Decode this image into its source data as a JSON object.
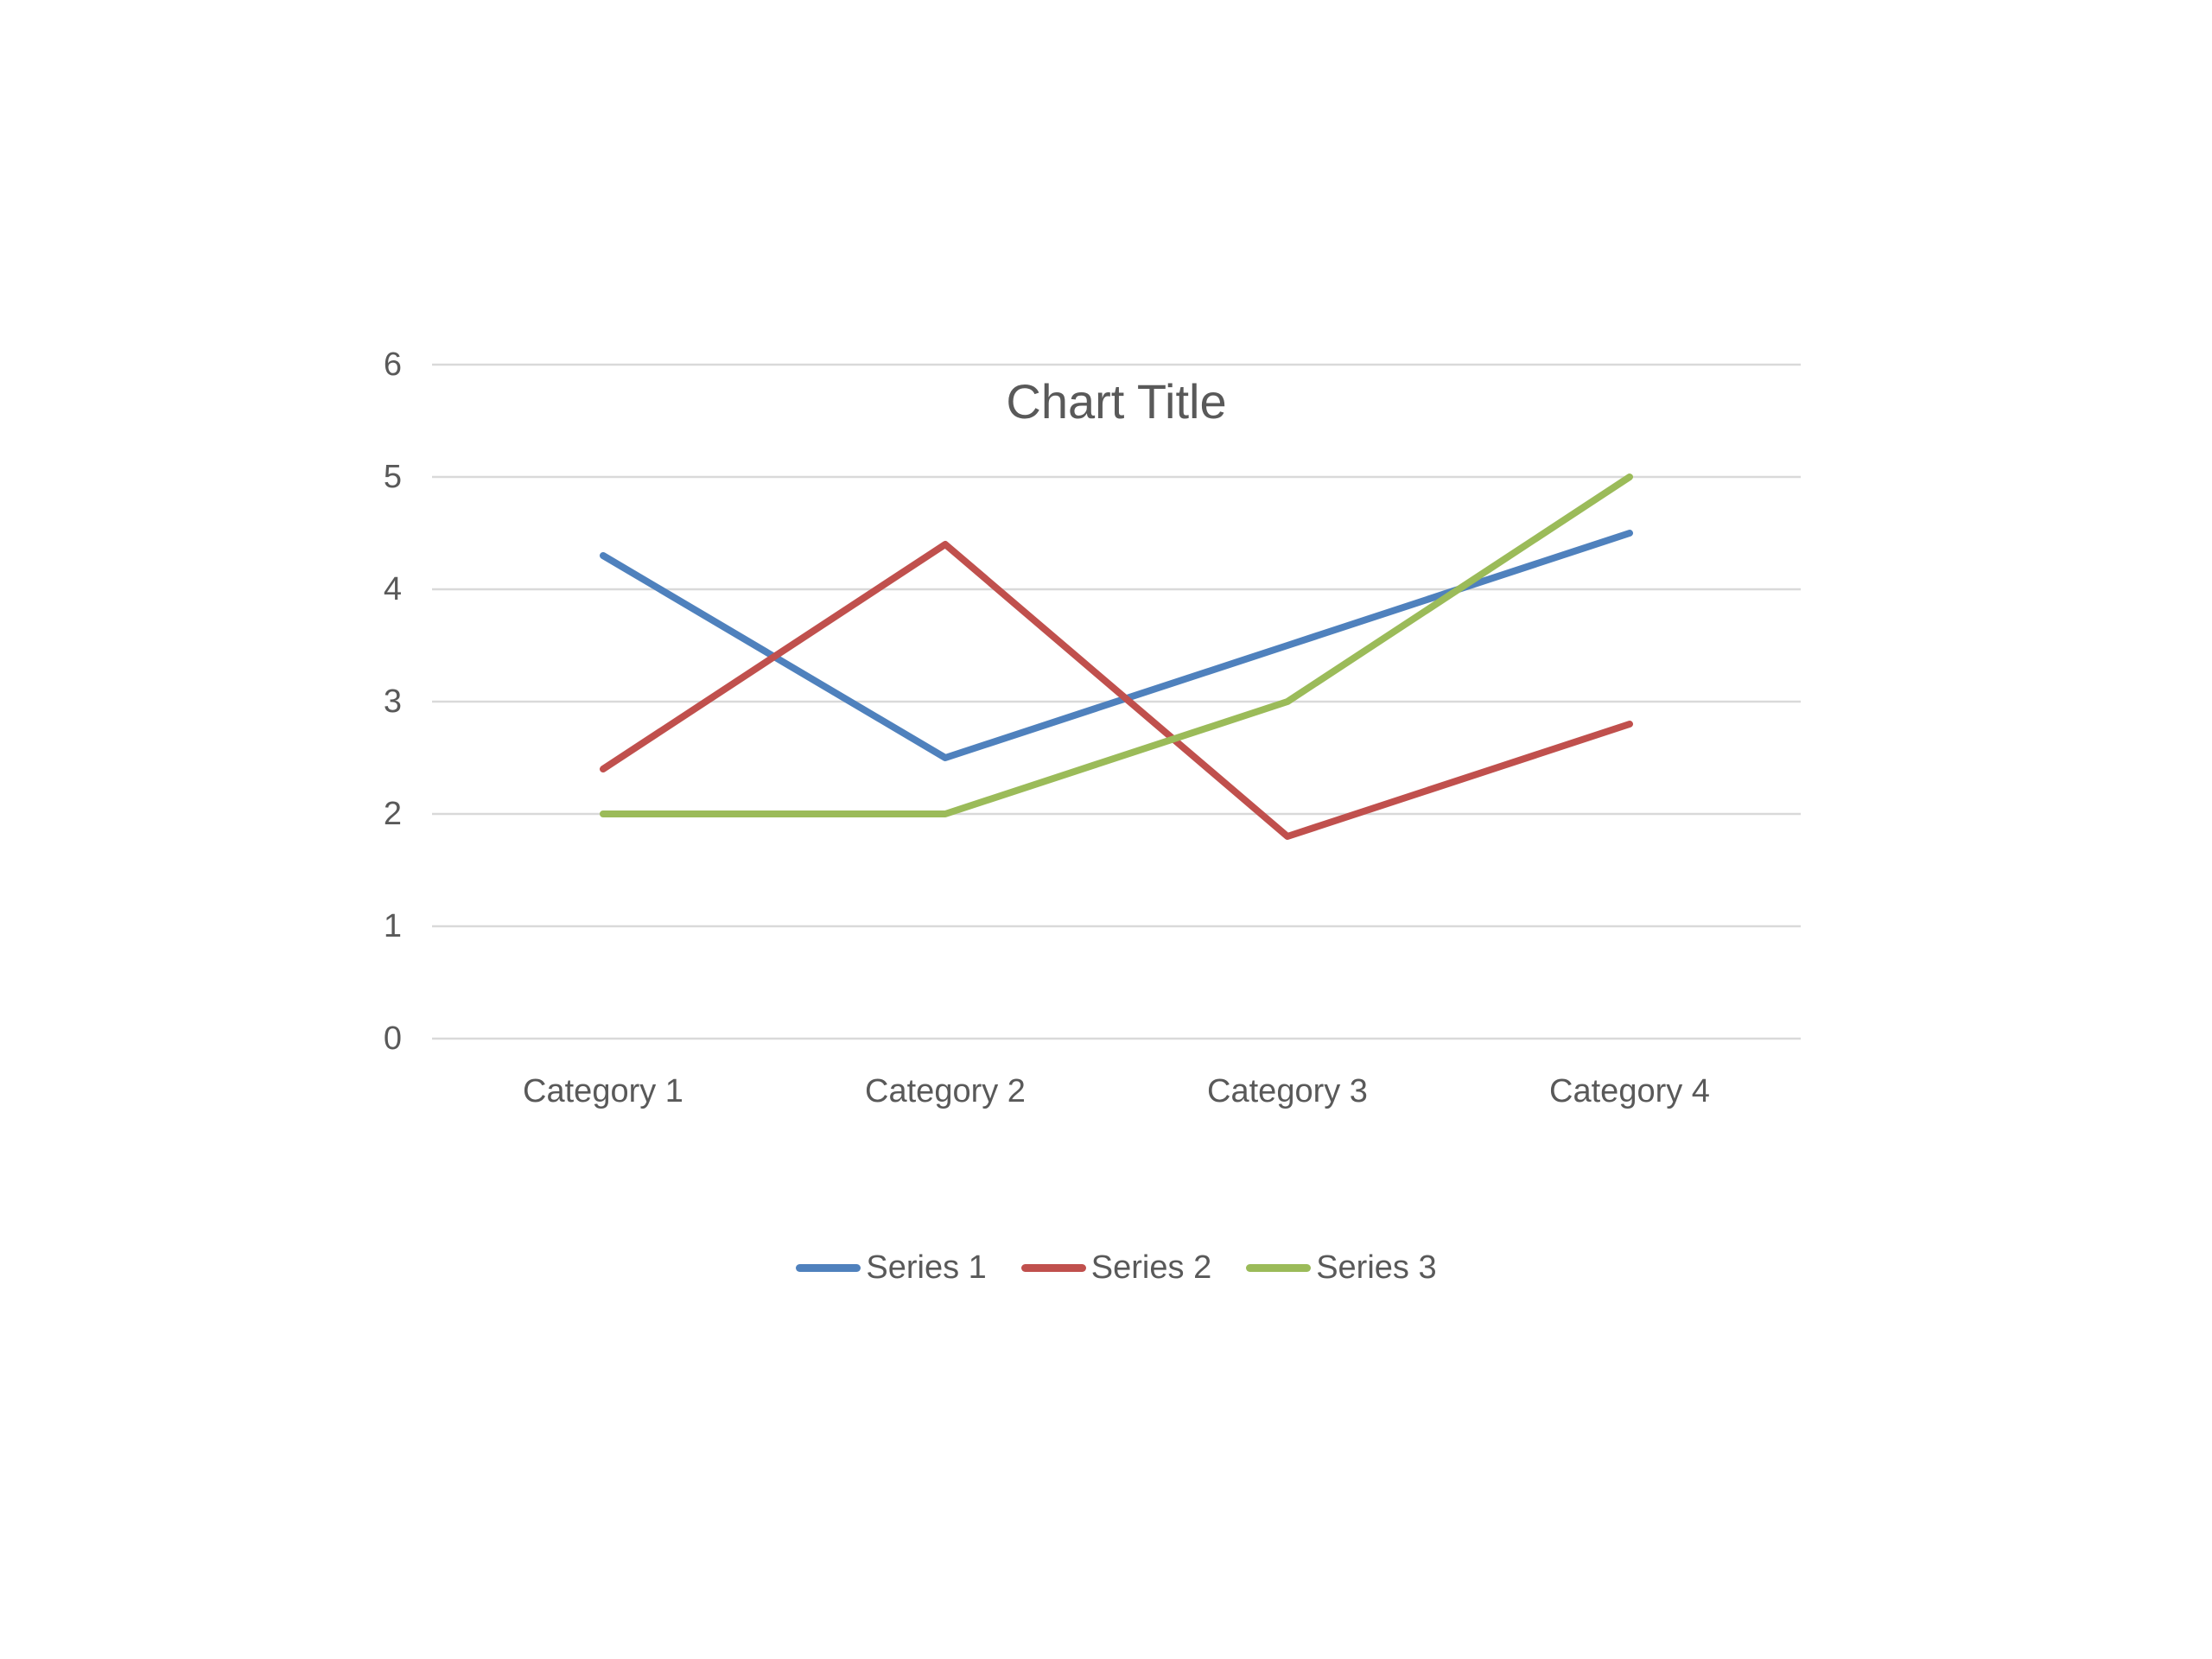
{
  "chart_data": {
    "type": "line",
    "title": "Chart Title",
    "categories": [
      "Category 1",
      "Category 2",
      "Category 3",
      "Category 4"
    ],
    "series": [
      {
        "name": "Series 1",
        "color": "#4F81BD",
        "values": [
          4.3,
          2.5,
          3.5,
          4.5
        ]
      },
      {
        "name": "Series 2",
        "color": "#C0504D",
        "values": [
          2.4,
          4.4,
          1.8,
          2.8
        ]
      },
      {
        "name": "Series 3",
        "color": "#9BBB59",
        "values": [
          2.0,
          2.0,
          3.0,
          5.0
        ]
      }
    ],
    "xlabel": "",
    "ylabel": "",
    "ylim": [
      0,
      6
    ],
    "yticks": [
      0,
      1,
      2,
      3,
      4,
      5,
      6
    ],
    "grid": "horizontal",
    "legend_position": "bottom",
    "colors": {
      "gridline": "#D9D9D9",
      "text": "#595959",
      "title": "#595959",
      "background": "#FFFFFF"
    }
  }
}
